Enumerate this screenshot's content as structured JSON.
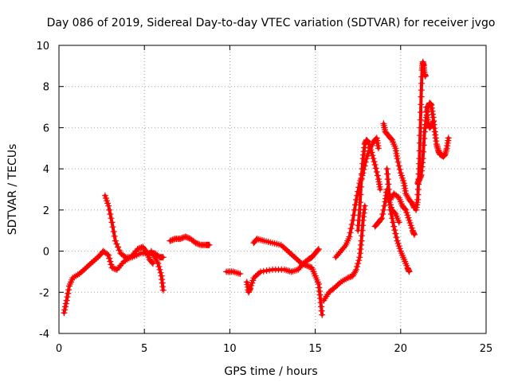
{
  "chart_data": {
    "type": "scatter",
    "title": "Day 086 of 2019, Sidereal Day-to-day VTEC variation (SDTVAR) for receiver jvgo",
    "xlabel": "GPS time / hours",
    "ylabel": "SDTVAR / TECUs",
    "xlim": [
      0,
      25
    ],
    "ylim": [
      -4,
      10
    ],
    "xticks": [
      0,
      5,
      10,
      15,
      20,
      25
    ],
    "yticks": [
      -4,
      -2,
      0,
      2,
      4,
      6,
      8,
      10
    ],
    "grid": true,
    "marker": "+",
    "color": "#ff0000",
    "series": [
      {
        "name": "seg1",
        "points": [
          [
            0.3,
            -3.0
          ],
          [
            0.45,
            -2.4
          ],
          [
            0.6,
            -1.7
          ],
          [
            0.8,
            -1.3
          ],
          [
            1.2,
            -1.1
          ],
          [
            1.6,
            -0.8
          ],
          [
            2.0,
            -0.5
          ],
          [
            2.4,
            -0.2
          ],
          [
            2.6,
            0.0
          ],
          [
            2.9,
            -0.2
          ],
          [
            3.1,
            -0.8
          ],
          [
            3.4,
            -0.9
          ],
          [
            3.8,
            -0.5
          ],
          [
            4.2,
            -0.3
          ],
          [
            4.6,
            0.1
          ],
          [
            4.9,
            0.2
          ],
          [
            5.1,
            0.0
          ],
          [
            5.3,
            -0.4
          ],
          [
            5.5,
            -0.6
          ]
        ]
      },
      {
        "name": "seg2",
        "points": [
          [
            2.7,
            2.7
          ],
          [
            2.9,
            2.2
          ],
          [
            3.1,
            1.4
          ],
          [
            3.3,
            0.5
          ],
          [
            3.6,
            -0.1
          ],
          [
            3.9,
            -0.3
          ],
          [
            4.3,
            -0.3
          ],
          [
            4.8,
            -0.1
          ],
          [
            5.3,
            -0.1
          ],
          [
            5.6,
            -0.1
          ],
          [
            5.9,
            -0.3
          ],
          [
            6.1,
            -0.3
          ]
        ]
      },
      {
        "name": "seg3",
        "points": [
          [
            5.4,
            0.0
          ],
          [
            5.6,
            -0.3
          ],
          [
            5.8,
            -0.6
          ],
          [
            6.0,
            -1.2
          ],
          [
            6.1,
            -1.9
          ]
        ]
      },
      {
        "name": "seg4",
        "points": [
          [
            6.5,
            0.5
          ],
          [
            6.8,
            0.6
          ],
          [
            7.1,
            0.6
          ],
          [
            7.4,
            0.7
          ],
          [
            7.7,
            0.6
          ],
          [
            8.0,
            0.4
          ],
          [
            8.3,
            0.3
          ],
          [
            8.6,
            0.3
          ],
          [
            8.8,
            0.3
          ]
        ]
      },
      {
        "name": "seg5",
        "points": [
          [
            9.8,
            -1.0
          ],
          [
            10.2,
            -1.0
          ],
          [
            10.6,
            -1.1
          ]
        ]
      },
      {
        "name": "seg6",
        "points": [
          [
            11.0,
            -1.5
          ],
          [
            11.1,
            -2.0
          ],
          [
            11.2,
            -1.8
          ],
          [
            11.4,
            -1.3
          ],
          [
            11.8,
            -1.0
          ],
          [
            12.5,
            -0.9
          ],
          [
            13.2,
            -0.9
          ],
          [
            13.6,
            -1.0
          ],
          [
            14.0,
            -0.9
          ],
          [
            14.3,
            -0.6
          ],
          [
            14.6,
            -0.4
          ],
          [
            14.8,
            -0.3
          ],
          [
            15.0,
            -0.1
          ],
          [
            15.2,
            0.1
          ]
        ]
      },
      {
        "name": "seg7",
        "points": [
          [
            11.4,
            0.4
          ],
          [
            11.6,
            0.6
          ],
          [
            12.0,
            0.5
          ],
          [
            12.5,
            0.4
          ],
          [
            13.0,
            0.3
          ],
          [
            13.4,
            0.0
          ],
          [
            13.8,
            -0.3
          ],
          [
            14.2,
            -0.6
          ],
          [
            14.5,
            -0.7
          ],
          [
            14.8,
            -0.8
          ],
          [
            15.0,
            -1.2
          ],
          [
            15.2,
            -1.6
          ],
          [
            15.3,
            -2.3
          ],
          [
            15.4,
            -3.1
          ]
        ]
      },
      {
        "name": "seg8",
        "points": [
          [
            15.5,
            -2.4
          ],
          [
            15.8,
            -2.0
          ],
          [
            16.1,
            -1.8
          ],
          [
            16.5,
            -1.5
          ],
          [
            16.9,
            -1.3
          ],
          [
            17.2,
            -1.2
          ],
          [
            17.4,
            -0.9
          ],
          [
            17.6,
            -0.3
          ],
          [
            17.7,
            0.5
          ],
          [
            17.8,
            1.5
          ],
          [
            17.9,
            2.2
          ]
        ]
      },
      {
        "name": "seg9",
        "points": [
          [
            16.2,
            -0.3
          ],
          [
            16.5,
            0.0
          ],
          [
            16.8,
            0.3
          ],
          [
            17.0,
            0.7
          ],
          [
            17.2,
            1.5
          ],
          [
            17.4,
            2.5
          ],
          [
            17.6,
            3.3
          ],
          [
            17.8,
            3.8
          ],
          [
            18.0,
            4.5
          ],
          [
            18.2,
            5.0
          ],
          [
            18.4,
            5.3
          ],
          [
            18.6,
            5.5
          ],
          [
            18.7,
            5.0
          ]
        ]
      },
      {
        "name": "seg10",
        "points": [
          [
            17.5,
            1.0
          ],
          [
            17.6,
            2.0
          ],
          [
            17.7,
            3.5
          ],
          [
            17.8,
            4.5
          ],
          [
            17.9,
            5.2
          ],
          [
            18.0,
            5.4
          ],
          [
            18.1,
            5.3
          ],
          [
            18.3,
            4.8
          ],
          [
            18.5,
            4.2
          ],
          [
            18.7,
            3.5
          ],
          [
            18.8,
            3.0
          ]
        ]
      },
      {
        "name": "seg11",
        "points": [
          [
            18.5,
            1.2
          ],
          [
            18.7,
            1.4
          ],
          [
            18.9,
            1.6
          ],
          [
            19.1,
            2.4
          ],
          [
            19.2,
            3.0
          ],
          [
            19.3,
            2.5
          ],
          [
            19.5,
            2.0
          ],
          [
            19.7,
            1.8
          ],
          [
            19.9,
            1.4
          ]
        ]
      },
      {
        "name": "seg12",
        "points": [
          [
            19.0,
            6.2
          ],
          [
            19.1,
            5.8
          ],
          [
            19.3,
            5.6
          ],
          [
            19.5,
            5.4
          ],
          [
            19.7,
            5.0
          ],
          [
            19.8,
            4.5
          ],
          [
            20.0,
            3.8
          ],
          [
            20.2,
            3.3
          ],
          [
            20.3,
            2.8
          ],
          [
            20.5,
            2.5
          ],
          [
            20.7,
            2.3
          ],
          [
            20.8,
            2.1
          ]
        ]
      },
      {
        "name": "seg13",
        "points": [
          [
            19.2,
            4.0
          ],
          [
            19.3,
            3.0
          ],
          [
            19.4,
            2.0
          ],
          [
            19.6,
            1.2
          ],
          [
            19.8,
            0.5
          ],
          [
            20.0,
            0.0
          ],
          [
            20.2,
            -0.4
          ],
          [
            20.4,
            -0.8
          ],
          [
            20.5,
            -1.0
          ]
        ]
      },
      {
        "name": "seg14",
        "points": [
          [
            19.4,
            2.5
          ],
          [
            19.6,
            2.8
          ],
          [
            19.9,
            2.6
          ],
          [
            20.1,
            2.2
          ],
          [
            20.3,
            2.0
          ],
          [
            20.5,
            1.5
          ],
          [
            20.7,
            1.0
          ],
          [
            20.8,
            0.8
          ]
        ]
      },
      {
        "name": "seg15",
        "points": [
          [
            20.9,
            2.0
          ],
          [
            21.0,
            2.5
          ],
          [
            21.05,
            3.5
          ],
          [
            21.1,
            4.5
          ],
          [
            21.15,
            6.0
          ],
          [
            21.2,
            7.5
          ],
          [
            21.25,
            8.8
          ],
          [
            21.3,
            9.2
          ],
          [
            21.35,
            9.0
          ],
          [
            21.4,
            8.6
          ],
          [
            21.45,
            8.5
          ]
        ]
      },
      {
        "name": "seg16",
        "points": [
          [
            21.0,
            3.3
          ],
          [
            21.1,
            3.5
          ],
          [
            21.2,
            3.7
          ],
          [
            21.3,
            4.5
          ],
          [
            21.4,
            5.8
          ],
          [
            21.5,
            6.5
          ],
          [
            21.6,
            7.0
          ],
          [
            21.7,
            7.2
          ],
          [
            21.8,
            7.1
          ],
          [
            21.9,
            6.5
          ],
          [
            22.0,
            5.8
          ],
          [
            22.1,
            5.2
          ],
          [
            22.2,
            4.9
          ],
          [
            22.3,
            4.7
          ],
          [
            22.5,
            4.6
          ],
          [
            22.6,
            4.7
          ],
          [
            22.7,
            5.0
          ],
          [
            22.8,
            5.5
          ]
        ]
      },
      {
        "name": "seg17",
        "points": [
          [
            21.5,
            7.0
          ],
          [
            21.6,
            6.2
          ],
          [
            21.7,
            6.0
          ],
          [
            21.8,
            6.1
          ],
          [
            21.9,
            6.3
          ]
        ]
      }
    ]
  }
}
